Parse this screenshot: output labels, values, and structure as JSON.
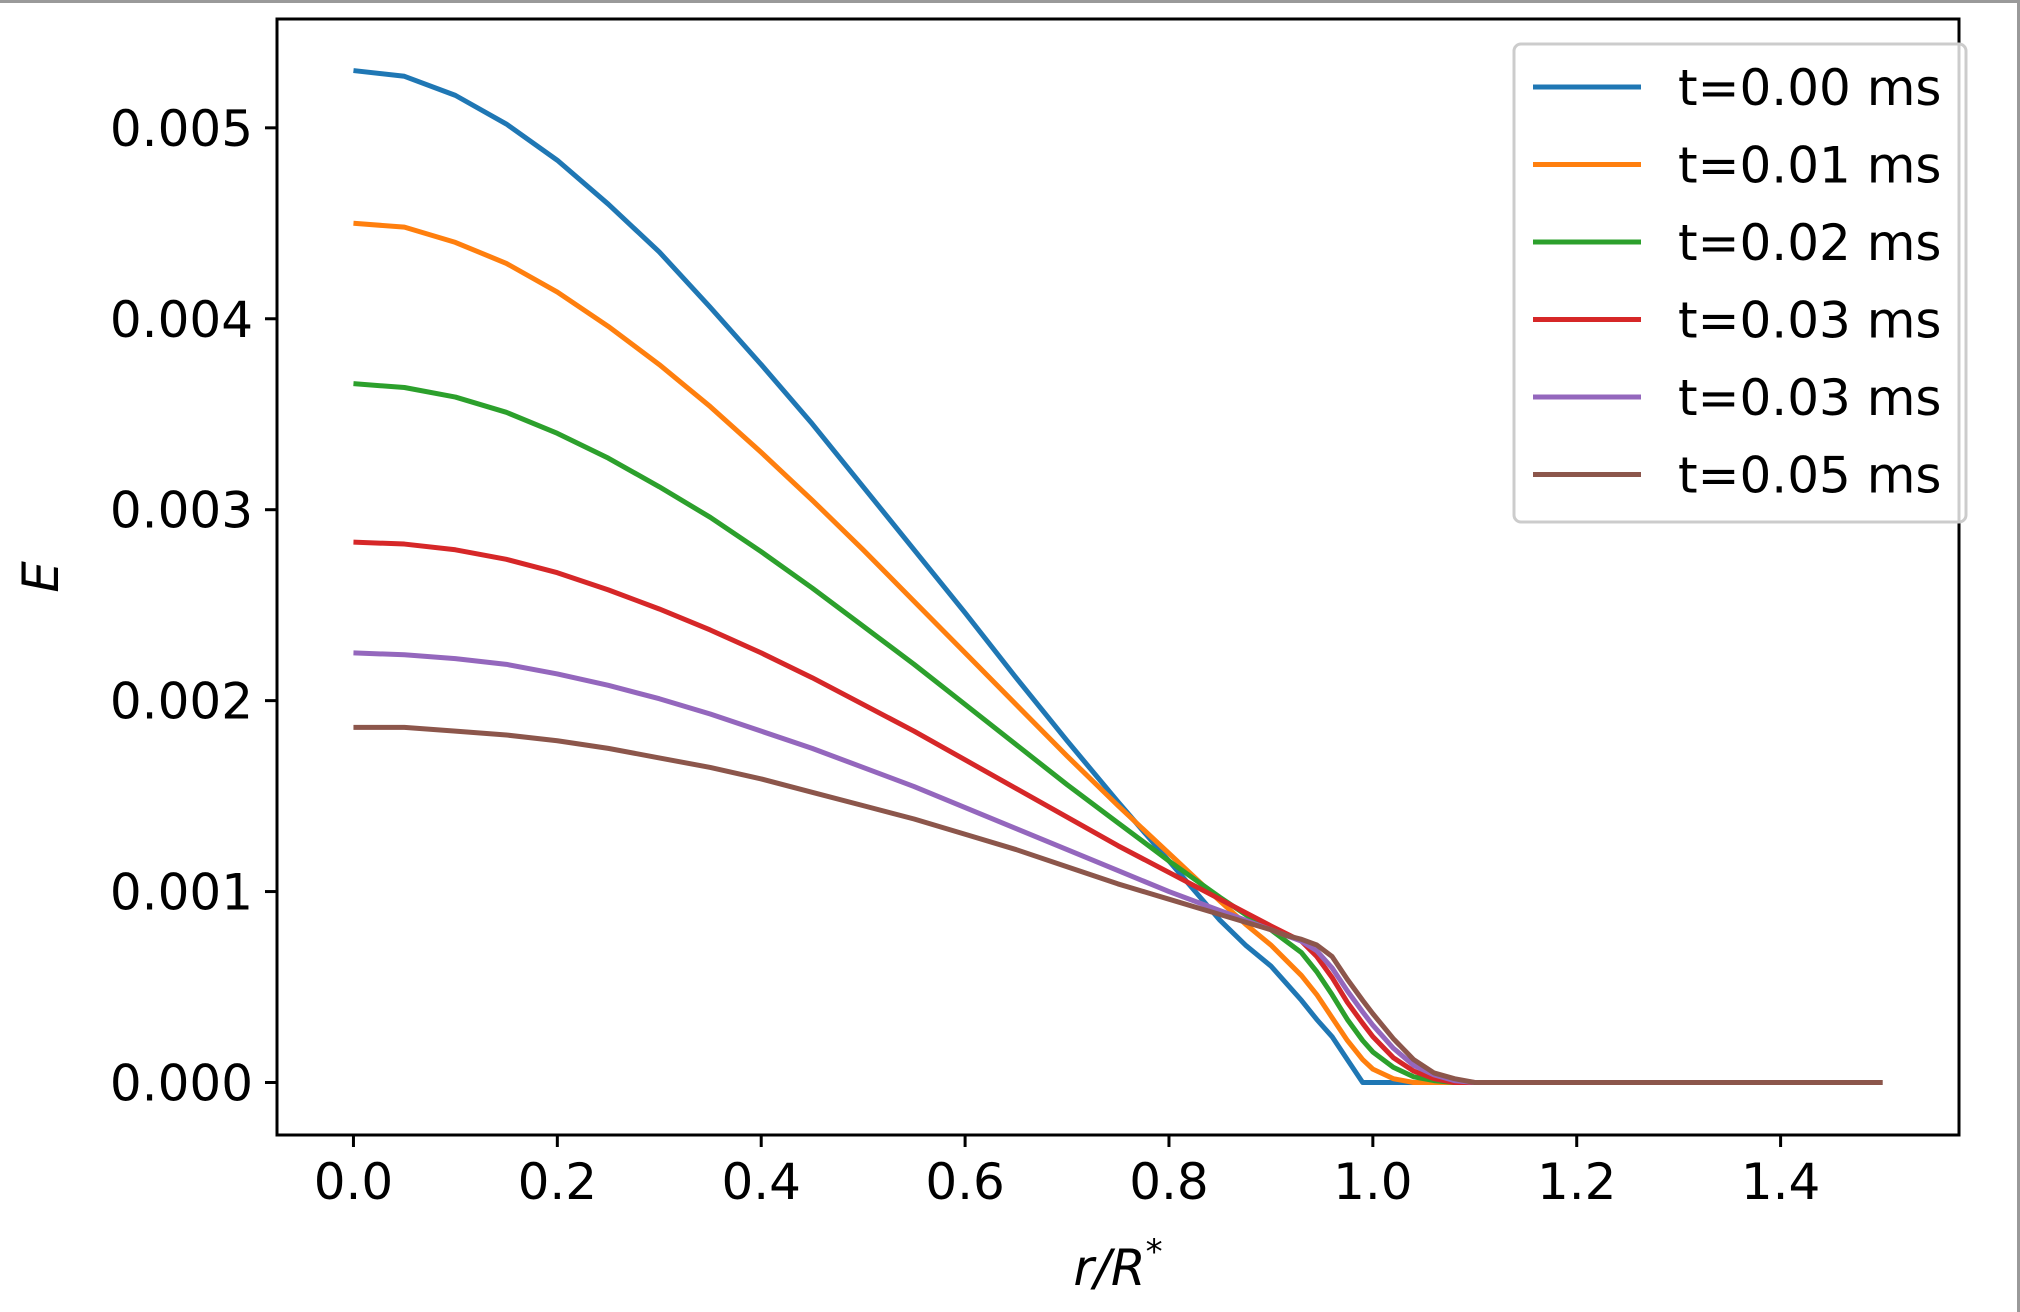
{
  "chart_data": {
    "type": "line",
    "title": "",
    "xlabel": "r/R",
    "xlabel_superscript": "*",
    "ylabel": "E",
    "xlim": [
      -0.075,
      1.575
    ],
    "ylim": [
      -0.000275,
      0.00557
    ],
    "xticks": [
      0.0,
      0.2,
      0.4,
      0.6,
      0.8,
      1.0,
      1.2,
      1.4
    ],
    "xtick_labels": [
      "0.0",
      "0.2",
      "0.4",
      "0.6",
      "0.8",
      "1.0",
      "1.2",
      "1.4"
    ],
    "yticks": [
      0.0,
      0.001,
      0.002,
      0.003,
      0.004,
      0.005
    ],
    "ytick_labels": [
      "0.000",
      "0.001",
      "0.002",
      "0.003",
      "0.004",
      "0.005"
    ],
    "grid": false,
    "legend_position": "top-right",
    "x": [
      0.0,
      0.05,
      0.1,
      0.15,
      0.2,
      0.25,
      0.3,
      0.35,
      0.4,
      0.45,
      0.5,
      0.55,
      0.6,
      0.65,
      0.7,
      0.75,
      0.8,
      0.85,
      0.875,
      0.9,
      0.915,
      0.93,
      0.945,
      0.96,
      0.975,
      0.99,
      1.0,
      1.02,
      1.04,
      1.06,
      1.08,
      1.1,
      1.12,
      1.15,
      1.2,
      1.3,
      1.4,
      1.5
    ],
    "series": [
      {
        "name": "t=0.00 ms",
        "color": "#1f77b4",
        "values": [
          0.0053,
          0.00527,
          0.00517,
          0.00502,
          0.00483,
          0.0046,
          0.00435,
          0.00406,
          0.00376,
          0.00345,
          0.00312,
          0.00279,
          0.00246,
          0.00212,
          0.00179,
          0.00147,
          0.00116,
          0.00085,
          0.00072,
          0.00061,
          0.00052,
          0.00043,
          0.00033,
          0.00024,
          0.00012,
          0.0,
          0.0,
          0.0,
          0.0,
          0.0,
          0.0,
          0.0,
          0.0,
          0.0,
          0.0,
          0.0,
          0.0,
          0.0
        ]
      },
      {
        "name": "t=0.01 ms",
        "color": "#ff7f0e",
        "values": [
          0.0045,
          0.00448,
          0.0044,
          0.00429,
          0.00414,
          0.00396,
          0.00376,
          0.00354,
          0.0033,
          0.00305,
          0.00279,
          0.00252,
          0.00225,
          0.00198,
          0.00171,
          0.00145,
          0.0012,
          0.00095,
          0.00083,
          0.00072,
          0.00064,
          0.00056,
          0.00046,
          0.00034,
          0.00022,
          0.00012,
          7e-05,
          2e-05,
          0.0,
          0.0,
          0.0,
          0.0,
          0.0,
          0.0,
          0.0,
          0.0,
          0.0,
          0.0
        ]
      },
      {
        "name": "t=0.02 ms",
        "color": "#2ca02c",
        "values": [
          0.00366,
          0.00364,
          0.00359,
          0.00351,
          0.0034,
          0.00327,
          0.00312,
          0.00296,
          0.00278,
          0.00259,
          0.00239,
          0.00219,
          0.00198,
          0.00177,
          0.00156,
          0.00136,
          0.00116,
          0.00097,
          0.00088,
          0.0008,
          0.00074,
          0.00068,
          0.00058,
          0.00046,
          0.00033,
          0.00022,
          0.00016,
          8e-05,
          3e-05,
          1e-05,
          0.0,
          0.0,
          0.0,
          0.0,
          0.0,
          0.0,
          0.0,
          0.0
        ]
      },
      {
        "name": "t=0.03 ms",
        "color": "#d62728",
        "values": [
          0.00283,
          0.00282,
          0.00279,
          0.00274,
          0.00267,
          0.00258,
          0.00248,
          0.00237,
          0.00225,
          0.00212,
          0.00198,
          0.00184,
          0.00169,
          0.00154,
          0.00139,
          0.00124,
          0.0011,
          0.00096,
          0.00089,
          0.00082,
          0.00078,
          0.00074,
          0.00066,
          0.00055,
          0.00042,
          0.00031,
          0.00024,
          0.00013,
          6e-05,
          2e-05,
          0.0,
          0.0,
          0.0,
          0.0,
          0.0,
          0.0,
          0.0,
          0.0
        ]
      },
      {
        "name": "t=0.03 ms",
        "color": "#9467bd",
        "values": [
          0.00225,
          0.00224,
          0.00222,
          0.00219,
          0.00214,
          0.00208,
          0.00201,
          0.00193,
          0.00184,
          0.00175,
          0.00165,
          0.00155,
          0.00144,
          0.00133,
          0.00122,
          0.00111,
          0.001,
          0.0009,
          0.00085,
          0.0008,
          0.00077,
          0.00074,
          0.00069,
          0.0006,
          0.00048,
          0.00037,
          0.0003,
          0.00018,
          9e-05,
          4e-05,
          1e-05,
          0.0,
          0.0,
          0.0,
          0.0,
          0.0,
          0.0,
          0.0
        ]
      },
      {
        "name": "t=0.05 ms",
        "color": "#8c564b",
        "values": [
          0.00186,
          0.00186,
          0.00184,
          0.00182,
          0.00179,
          0.00175,
          0.0017,
          0.00165,
          0.00159,
          0.00152,
          0.00145,
          0.00138,
          0.0013,
          0.00122,
          0.00113,
          0.00104,
          0.00096,
          0.00088,
          0.00084,
          0.0008,
          0.00077,
          0.00075,
          0.00072,
          0.00066,
          0.00054,
          0.00043,
          0.00036,
          0.00023,
          0.00012,
          5e-05,
          2e-05,
          0.0,
          0.0,
          0.0,
          0.0,
          0.0,
          0.0,
          0.0
        ]
      }
    ]
  }
}
